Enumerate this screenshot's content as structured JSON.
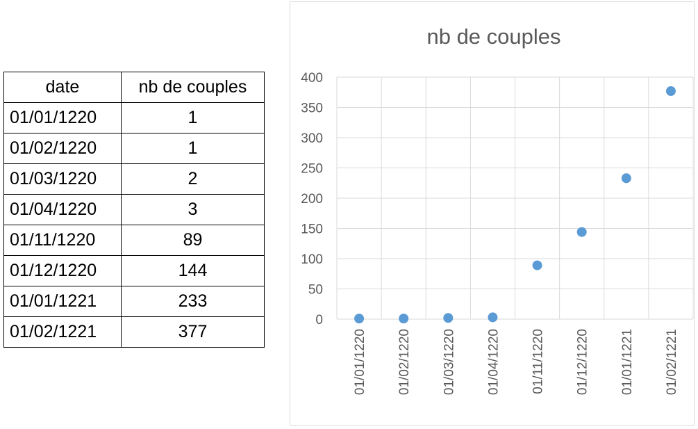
{
  "table": {
    "headers": [
      "date",
      "nb de couples"
    ],
    "rows": [
      [
        "01/01/1220",
        "1"
      ],
      [
        "01/02/1220",
        "1"
      ],
      [
        "01/03/1220",
        "2"
      ],
      [
        "01/04/1220",
        "3"
      ],
      [
        "01/11/1220",
        "89"
      ],
      [
        "01/12/1220",
        "144"
      ],
      [
        "01/01/1221",
        "233"
      ],
      [
        "01/02/1221",
        "377"
      ]
    ]
  },
  "chart_data": {
    "type": "scatter",
    "title": "nb de couples",
    "categories": [
      "01/01/1220",
      "01/02/1220",
      "01/03/1220",
      "01/04/1220",
      "01/11/1220",
      "01/12/1220",
      "01/01/1221",
      "01/02/1221"
    ],
    "series": [
      {
        "values": [
          1,
          1,
          2,
          3,
          89,
          144,
          233,
          377
        ]
      }
    ],
    "ylim": [
      0,
      400
    ],
    "yticks": [
      0,
      50,
      100,
      150,
      200,
      250,
      300,
      350,
      400
    ],
    "grid": true,
    "legend": "none",
    "marker_color": "#5b9bd5",
    "grid_color": "#d9d9d9",
    "text_color": "#595959"
  }
}
